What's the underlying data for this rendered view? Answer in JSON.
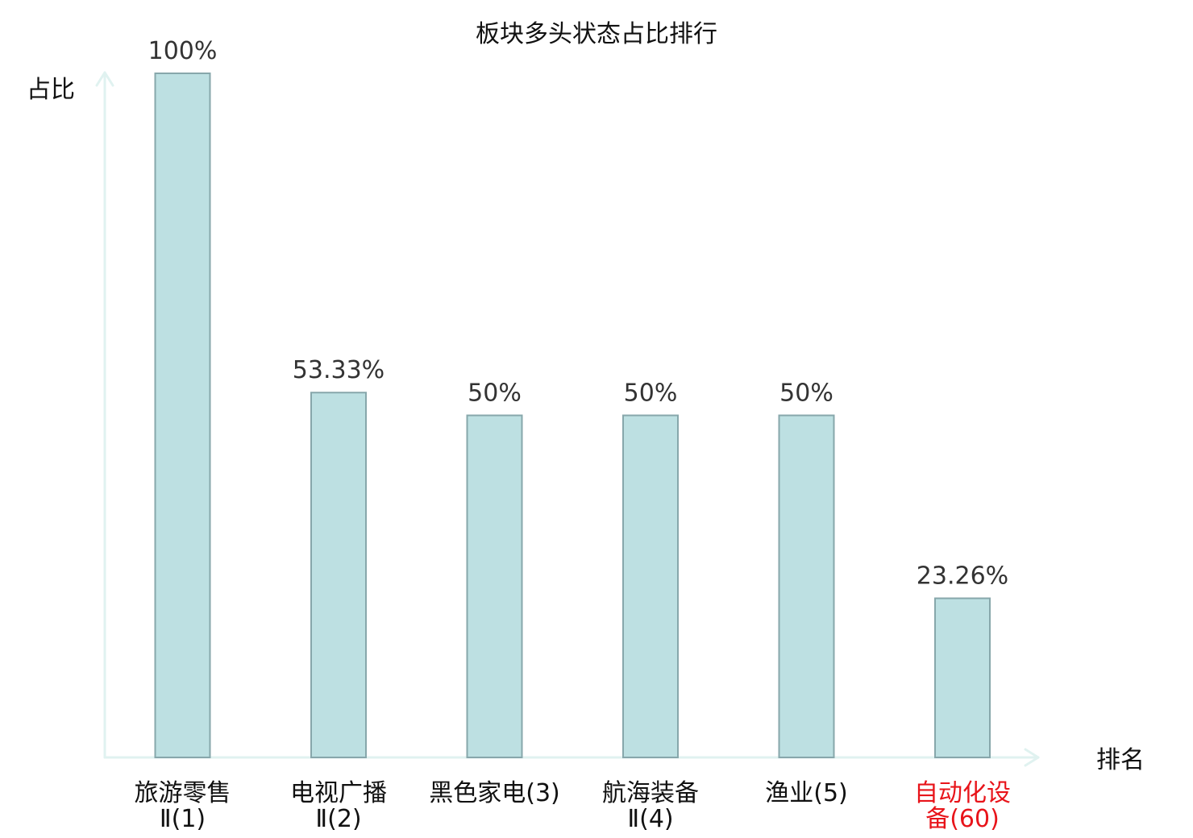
{
  "chart_data": {
    "type": "bar",
    "title": "板块多头状态占比排行",
    "xlabel": "排名",
    "ylabel": "占比",
    "ylim": [
      0,
      100
    ],
    "grid": false,
    "categories": [
      {
        "label_lines": [
          "旅游零售",
          "Ⅱ(1)"
        ],
        "highlight": false
      },
      {
        "label_lines": [
          "电视广播",
          "Ⅱ(2)"
        ],
        "highlight": false
      },
      {
        "label_lines": [
          "黑色家电(3)"
        ],
        "highlight": false
      },
      {
        "label_lines": [
          "航海装备",
          "Ⅱ(4)"
        ],
        "highlight": false
      },
      {
        "label_lines": [
          "渔业(5)"
        ],
        "highlight": false
      },
      {
        "label_lines": [
          "自动化设",
          "备(60)"
        ],
        "highlight": true
      }
    ],
    "values": [
      100,
      53.33,
      50,
      50,
      50,
      23.26
    ],
    "value_labels": [
      "100%",
      "53.33%",
      "50%",
      "50%",
      "50%",
      "23.26%"
    ],
    "colors": {
      "bar_fill": "#bde0e2",
      "bar_stroke": "#87a7ab",
      "axis": "#e0f2f0",
      "label": "#333333",
      "highlight": "#e8141a"
    }
  }
}
